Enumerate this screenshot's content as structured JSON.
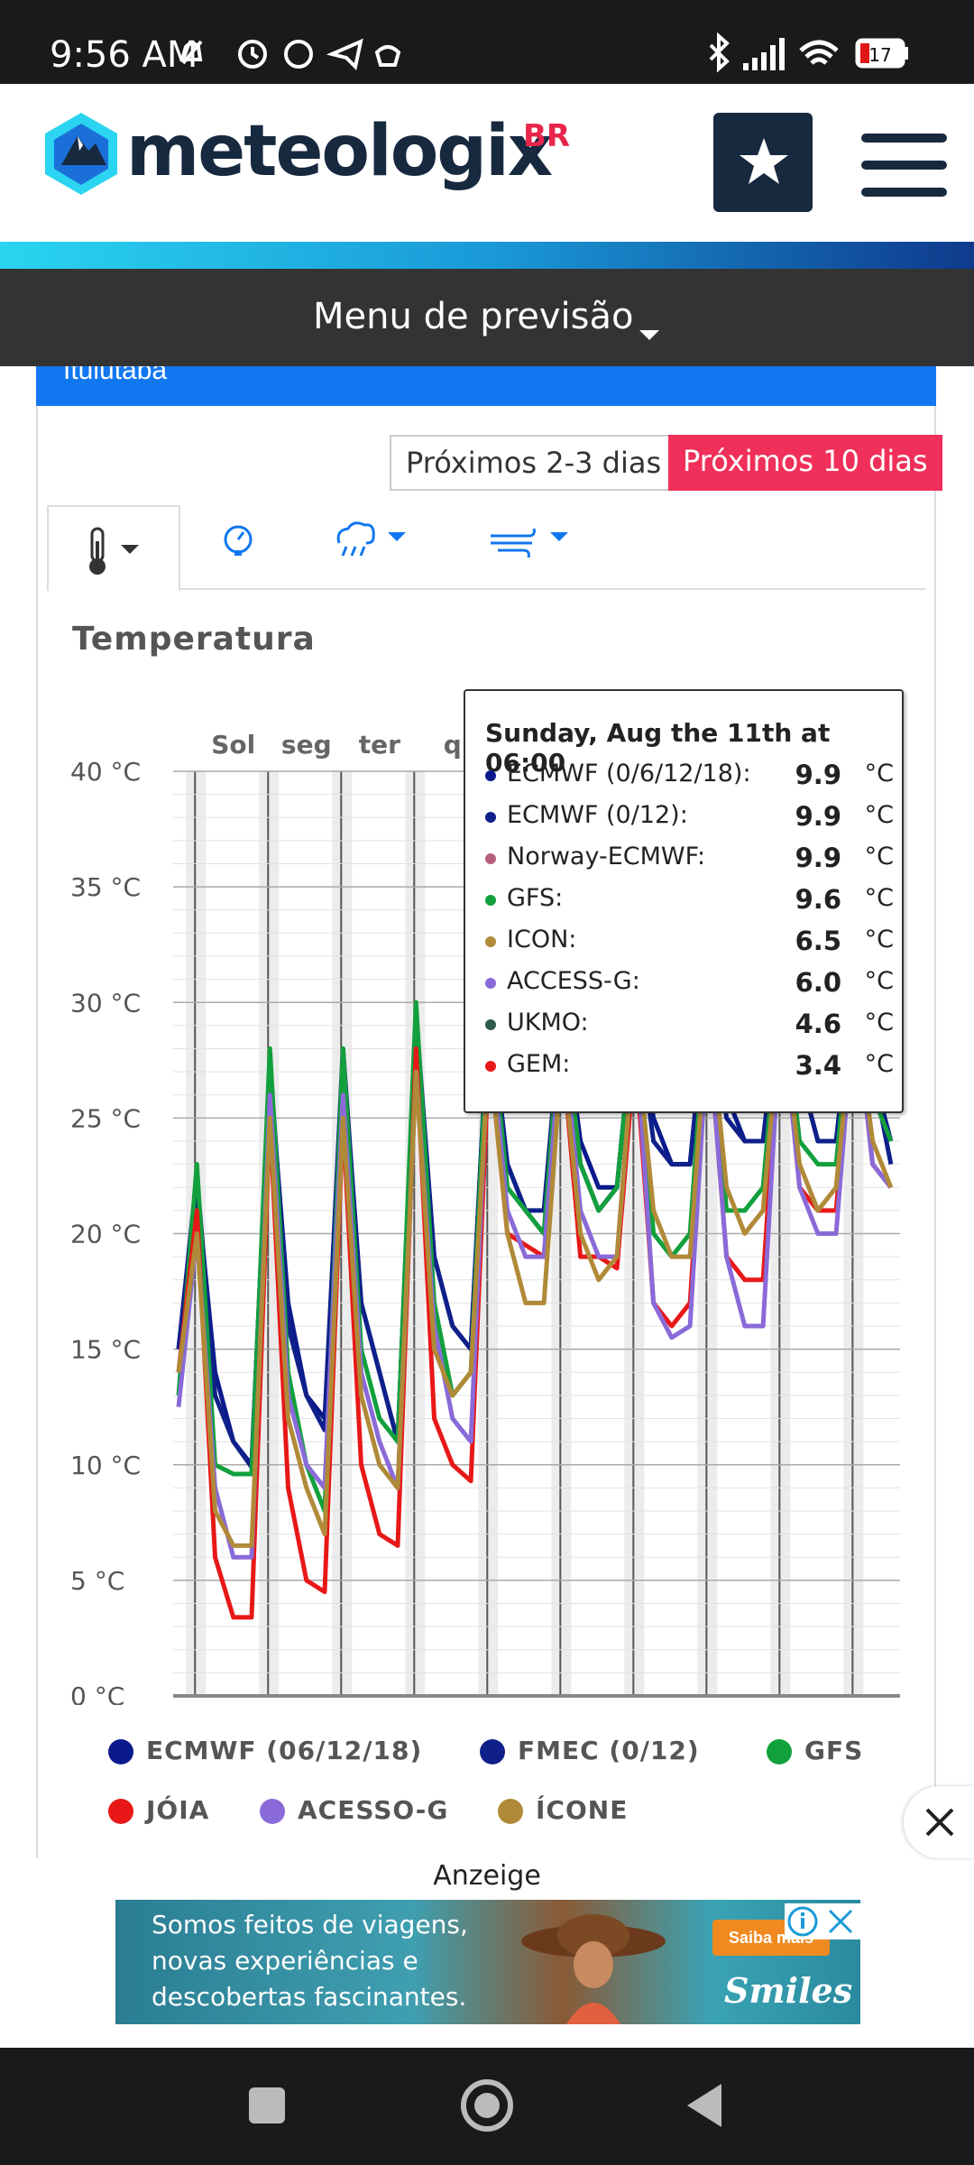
{
  "status_bar": {
    "time": "9:56 AM",
    "battery": "17"
  },
  "header": {
    "brand": "meteologix",
    "brand_suffix": "BR"
  },
  "menu_bar": {
    "label": "Menu de previsão"
  },
  "location": {
    "name": "Ituiutaba"
  },
  "range_buttons": {
    "short": "Próximos 2-3 dias",
    "long": "Próximos 10 dias"
  },
  "chart_title": "Temperatura",
  "tooltip": {
    "title": "Sunday, Aug the 11th at 06:00",
    "rows": [
      {
        "name": "ECMWF (0/6/12/18):",
        "value": "9.9",
        "unit": "°C",
        "color": "#0a1a8c"
      },
      {
        "name": "ECMWF (0/12):",
        "value": "9.9",
        "unit": "°C",
        "color": "#10208a"
      },
      {
        "name": "Norway-ECMWF:",
        "value": "9.9",
        "unit": "°C",
        "color": "#b5607a"
      },
      {
        "name": "GFS:",
        "value": "9.6",
        "unit": "°C",
        "color": "#12a03c"
      },
      {
        "name": "ICON:",
        "value": "6.5",
        "unit": "°C",
        "color": "#b08a38"
      },
      {
        "name": "ACCESS-G:",
        "value": "6.0",
        "unit": "°C",
        "color": "#8a6ad8"
      },
      {
        "name": "UKMO:",
        "value": "4.6",
        "unit": "°C",
        "color": "#2f5a4a"
      },
      {
        "name": "GEM:",
        "value": "3.4",
        "unit": "°C",
        "color": "#e81818"
      }
    ]
  },
  "legend": [
    {
      "label": "ECMWF (06/12/18)",
      "color": "#0a1a8c"
    },
    {
      "label": "FMEC (0/12)",
      "color": "#10208a"
    },
    {
      "label": "GFS",
      "color": "#12a03c"
    },
    {
      "label": "JÓIA",
      "color": "#e81818"
    },
    {
      "label": "ACESSO-G",
      "color": "#8a6ad8"
    },
    {
      "label": "ÍCONE",
      "color": "#b08a38"
    }
  ],
  "ad": {
    "label": "Anzeige",
    "line1": "Somos feitos de viagens,",
    "line2": "novas experiências e",
    "line3": "descobertas fascinantes.",
    "cta": "Saiba mais",
    "brand": "Smiles"
  },
  "chart_data": {
    "type": "line",
    "ylabel": "",
    "ylim": [
      0,
      40
    ],
    "y_ticks": [
      "0 °C",
      "5 °C",
      "10 °C",
      "15 °C",
      "20 °C",
      "25 °C",
      "30 °C",
      "35 °C",
      "40 °C"
    ],
    "x_day_labels": [
      "Sol",
      "seg",
      "ter",
      "q"
    ],
    "x_hours": [
      0,
      6,
      12,
      18,
      24,
      30,
      36,
      42,
      48,
      54,
      60,
      66,
      72,
      78,
      84,
      90,
      96,
      102,
      108,
      114,
      120,
      126,
      132,
      138,
      144,
      150,
      156,
      162,
      168,
      174,
      180,
      186,
      192,
      198,
      204,
      210,
      216,
      222,
      228,
      234
    ],
    "series": [
      {
        "name": "ECMWF (0/6/12/18)",
        "color": "#0a1a8c",
        "values": [
          15,
          22,
          14,
          11,
          10,
          27,
          17,
          13,
          12,
          27.5,
          17,
          14,
          11,
          29,
          19,
          16,
          15,
          30,
          23,
          21,
          20,
          30,
          24,
          22,
          22,
          30,
          25,
          23,
          23,
          31,
          26,
          24,
          24,
          31,
          27,
          24,
          24,
          31,
          27,
          24
        ]
      },
      {
        "name": "ECMWF (0/12)",
        "color": "#10208a",
        "values": [
          15,
          22.5,
          13,
          11,
          9.9,
          27.5,
          16,
          13,
          11.5,
          28,
          17,
          14,
          11,
          29.5,
          19,
          16,
          15,
          30,
          23,
          21,
          21,
          30,
          23,
          21,
          22,
          30,
          24,
          23,
          23,
          31,
          25,
          24,
          24,
          31,
          27,
          24,
          24,
          31,
          27,
          23
        ]
      },
      {
        "name": "GFS",
        "color": "#12a03c",
        "values": [
          13,
          23,
          10,
          9.6,
          9.6,
          28,
          14,
          10,
          8,
          28,
          15,
          12,
          11,
          30,
          17,
          13,
          14,
          30,
          22,
          21,
          20,
          30,
          23,
          21,
          22,
          30,
          20,
          19,
          20,
          31,
          21,
          21,
          22,
          31,
          24,
          23,
          23,
          31,
          26,
          24
        ]
      },
      {
        "name": "GEM",
        "color": "#e81818",
        "values": [
          14,
          21,
          6,
          3.4,
          3.4,
          25,
          9,
          5,
          4.5,
          25,
          10,
          7,
          6.5,
          28,
          12,
          10,
          9.3,
          28,
          20,
          19.5,
          19,
          28,
          19,
          19,
          18.5,
          28,
          17,
          16,
          17,
          29,
          19,
          18,
          18,
          30,
          22,
          21,
          21,
          30,
          23,
          22
        ]
      },
      {
        "name": "ACCESS-G",
        "color": "#8a6ad8",
        "values": [
          12.5,
          20,
          9,
          6,
          6.0,
          26,
          13,
          10,
          9,
          26,
          14,
          11,
          9,
          27,
          16,
          12,
          11,
          29,
          21,
          19,
          19,
          29,
          21,
          19,
          19,
          29,
          17,
          15.5,
          16,
          29,
          19,
          16,
          16,
          30,
          22,
          20,
          20,
          30,
          23,
          22
        ]
      },
      {
        "name": "ICON",
        "color": "#b08a38",
        "values": [
          14,
          20,
          8,
          6.5,
          6.5,
          25,
          12,
          9,
          7,
          25,
          13,
          10,
          9,
          27,
          15,
          13,
          14,
          28,
          20,
          17,
          17,
          28,
          20,
          18,
          19,
          29,
          21,
          19,
          19,
          30,
          22,
          20,
          21,
          30,
          23,
          21,
          22,
          30,
          24,
          22
        ]
      }
    ]
  }
}
